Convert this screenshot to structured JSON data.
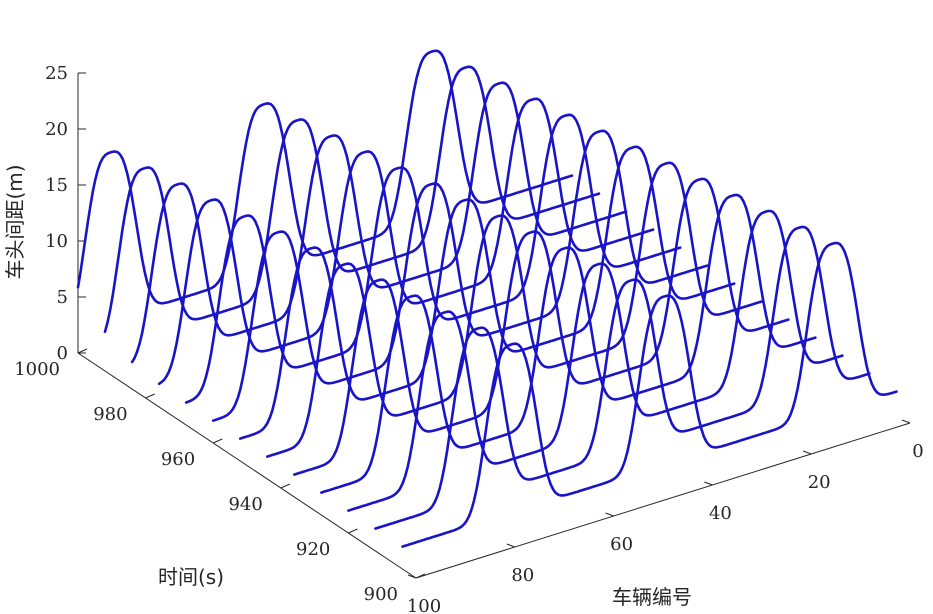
{
  "chart_data": {
    "type": "line",
    "plot_style": "3d-waterfall",
    "title": "",
    "xlabel": "车辆编号",
    "ylabel": "时间(s)",
    "zlabel": "车头间距(m)",
    "x_range": [
      0,
      100
    ],
    "y_range": [
      900,
      1000
    ],
    "z_range": [
      0,
      25
    ],
    "x_ticks": [
      "0",
      "20",
      "40",
      "60",
      "80",
      "100"
    ],
    "y_ticks": [
      "900",
      "920",
      "940",
      "960",
      "980",
      "1000"
    ],
    "z_ticks": [
      "0",
      "5",
      "10",
      "15",
      "20",
      "25"
    ],
    "grid": false,
    "series_color": "#1a14c8",
    "times": [
      904,
      912,
      920,
      928,
      936,
      944,
      952,
      960,
      968,
      976,
      984,
      992,
      1000
    ],
    "wave": {
      "base_headway": 2,
      "peak_headway": 17,
      "peak_width_vehicles": 6,
      "speed_vehicles_per_second": 0.16,
      "peak_vehicle_positions_at_904s": [
        13,
        47,
        78
      ]
    }
  }
}
